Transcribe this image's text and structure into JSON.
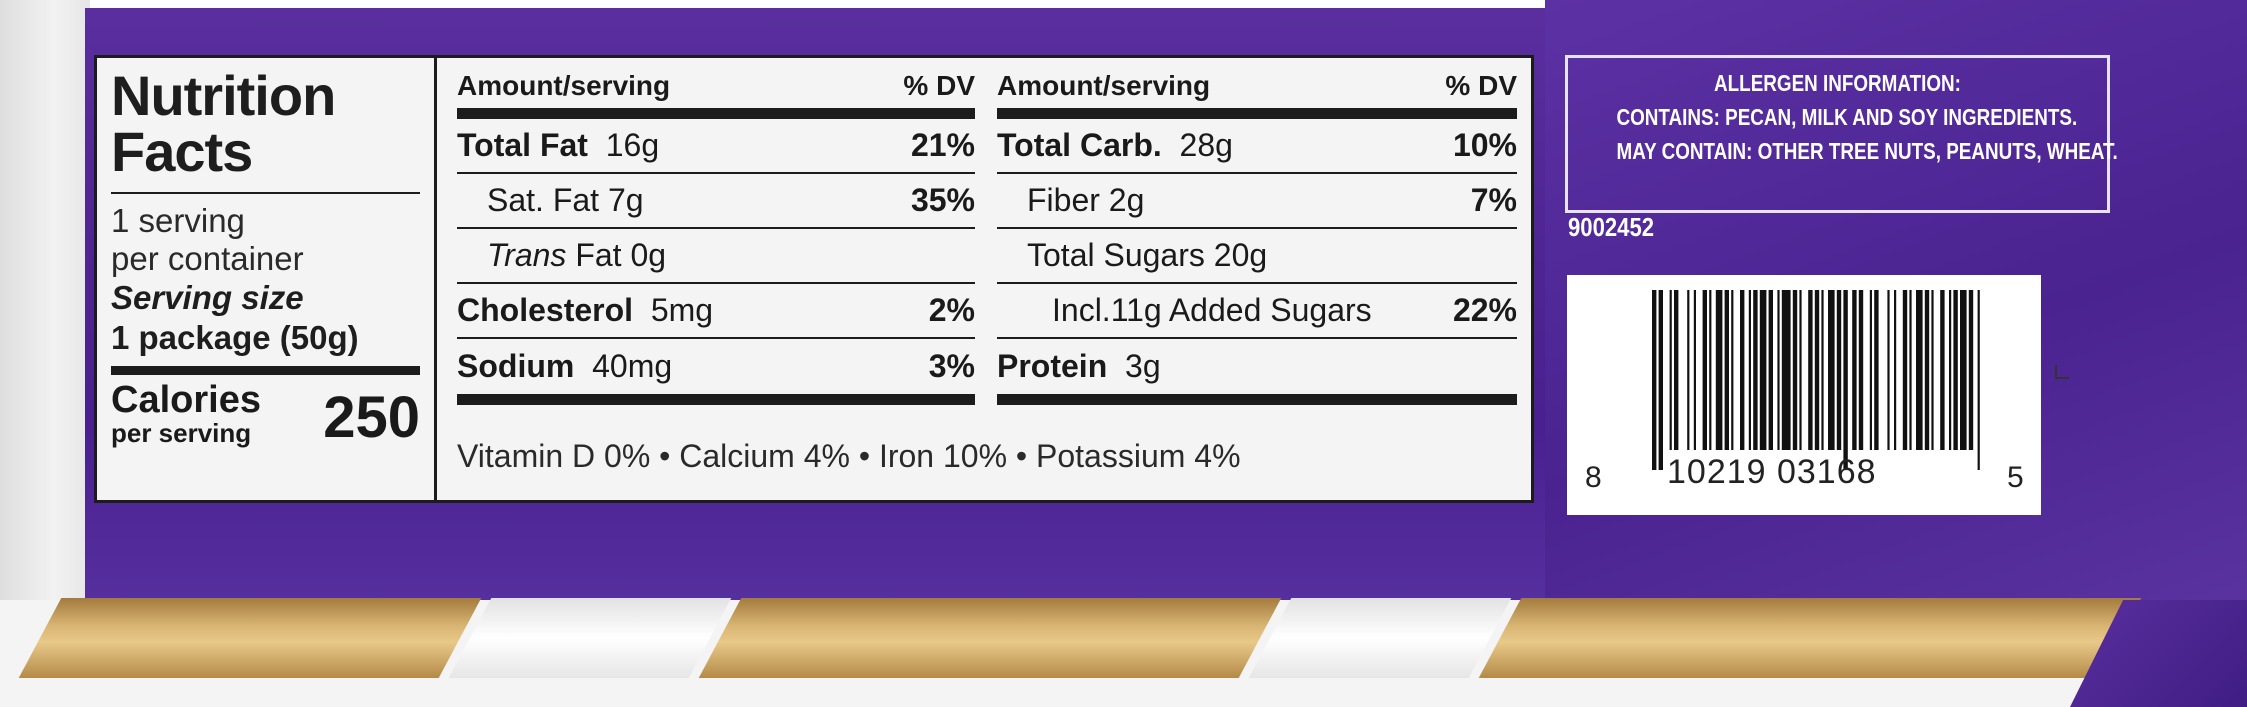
{
  "nutrition": {
    "title_line1": "Nutrition",
    "title_line2": "Facts",
    "servings_line1": "1 serving",
    "servings_line2": "per container",
    "serving_size_label": "Serving size",
    "serving_size_value": "1 package (50g)",
    "calories_label": "Calories",
    "calories_per": "per serving",
    "calories_value": "250",
    "column1": {
      "header_amount": "Amount/serving",
      "header_dv": "% DV",
      "rows": [
        {
          "label": "Total Fat",
          "amount": "16g",
          "dv": "21%"
        },
        {
          "label": "Sat. Fat 7g",
          "amount": "",
          "dv": "35%"
        },
        {
          "label": "Trans",
          "amount": "Fat 0g",
          "dv": ""
        },
        {
          "label": "Cholesterol",
          "amount": "5mg",
          "dv": "2%"
        },
        {
          "label": "Sodium",
          "amount": "40mg",
          "dv": "3%"
        }
      ]
    },
    "column2": {
      "header_amount": "Amount/serving",
      "header_dv": "% DV",
      "rows": [
        {
          "label": "Total Carb.",
          "amount": "28g",
          "dv": "10%"
        },
        {
          "label": "Fiber 2g",
          "amount": "",
          "dv": "7%"
        },
        {
          "label": "Total Sugars 20g",
          "amount": "",
          "dv": ""
        },
        {
          "label": "Incl.11g Added Sugars",
          "amount": "",
          "dv": "22%"
        },
        {
          "label": "Protein",
          "amount": "3g",
          "dv": ""
        }
      ]
    },
    "vitamins": "Vitamin D 0% • Calcium 4% • Iron 10% • Potassium 4%"
  },
  "allergen": {
    "line1": "ALLERGEN INFORMATION:",
    "line2": "CONTAINS: PECAN, MILK AND SOY INGREDIENTS.",
    "line3": "MAY CONTAIN: OTHER TREE NUTS, PEANUTS, WHEAT."
  },
  "item_code": "9002452",
  "barcode": {
    "first_digit": "8",
    "middle_digits": "10219  03168",
    "last_digit": "5"
  },
  "colors": {
    "wrapper_purple": "#4e2592",
    "panel_bg": "#f3f4f3",
    "gold": "#d9b574"
  }
}
